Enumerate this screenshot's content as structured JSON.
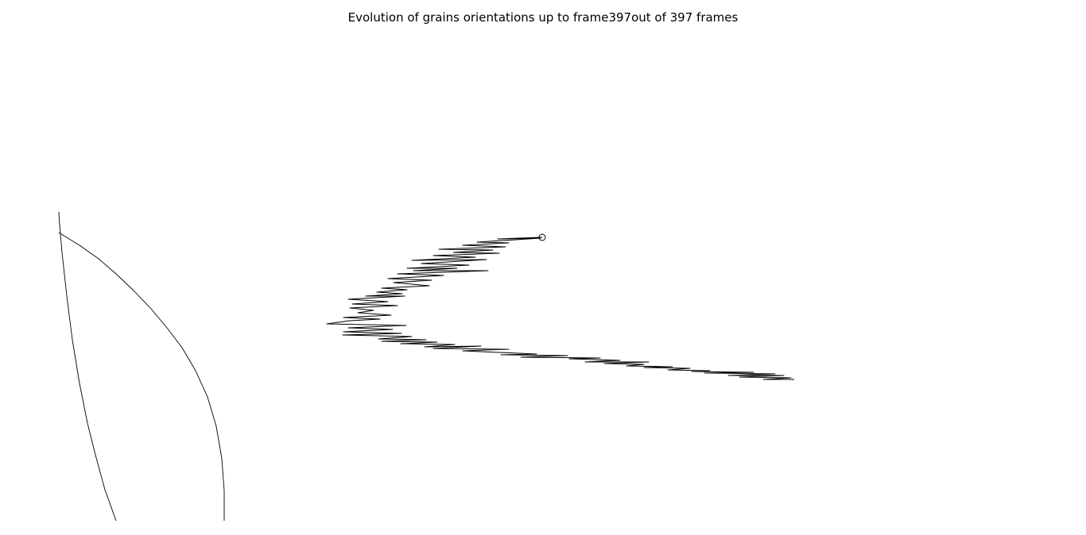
{
  "chart_data": {
    "type": "line",
    "title": "Evolution of grains orientations up to frame397out of 397 frames",
    "frame_current": 397,
    "frame_total": 397,
    "axes_visible": false,
    "grid": false,
    "legend": "none",
    "line_color": "#000000",
    "end_marker": "open-circle",
    "series": [
      {
        "values": [
          {
            "x": 682,
            "y": 299
          },
          {
            "x": 626,
            "y": 301
          },
          {
            "x": 680,
            "y": 300
          },
          {
            "x": 600,
            "y": 305
          },
          {
            "x": 640,
            "y": 306
          },
          {
            "x": 582,
            "y": 309
          },
          {
            "x": 636,
            "y": 311
          },
          {
            "x": 552,
            "y": 314
          },
          {
            "x": 620,
            "y": 315
          },
          {
            "x": 570,
            "y": 318
          },
          {
            "x": 628,
            "y": 319
          },
          {
            "x": 545,
            "y": 322
          },
          {
            "x": 598,
            "y": 324
          },
          {
            "x": 518,
            "y": 328
          },
          {
            "x": 612,
            "y": 327
          },
          {
            "x": 530,
            "y": 332
          },
          {
            "x": 590,
            "y": 334
          },
          {
            "x": 512,
            "y": 338
          },
          {
            "x": 575,
            "y": 338
          },
          {
            "x": 520,
            "y": 341
          },
          {
            "x": 614,
            "y": 341
          },
          {
            "x": 500,
            "y": 345
          },
          {
            "x": 558,
            "y": 347
          },
          {
            "x": 488,
            "y": 351
          },
          {
            "x": 543,
            "y": 353
          },
          {
            "x": 495,
            "y": 356
          },
          {
            "x": 540,
            "y": 360
          },
          {
            "x": 480,
            "y": 363
          },
          {
            "x": 512,
            "y": 365
          },
          {
            "x": 474,
            "y": 368
          },
          {
            "x": 506,
            "y": 370
          },
          {
            "x": 460,
            "y": 373
          },
          {
            "x": 509,
            "y": 373
          },
          {
            "x": 438,
            "y": 377
          },
          {
            "x": 488,
            "y": 380
          },
          {
            "x": 443,
            "y": 383
          },
          {
            "x": 500,
            "y": 385
          },
          {
            "x": 440,
            "y": 388
          },
          {
            "x": 470,
            "y": 391
          },
          {
            "x": 450,
            "y": 394
          },
          {
            "x": 492,
            "y": 397
          },
          {
            "x": 432,
            "y": 400
          },
          {
            "x": 478,
            "y": 402
          },
          {
            "x": 440,
            "y": 404
          },
          {
            "x": 411,
            "y": 408
          },
          {
            "x": 511,
            "y": 410
          },
          {
            "x": 438,
            "y": 413
          },
          {
            "x": 494,
            "y": 415
          },
          {
            "x": 432,
            "y": 418
          },
          {
            "x": 505,
            "y": 420
          },
          {
            "x": 431,
            "y": 422
          },
          {
            "x": 518,
            "y": 424
          },
          {
            "x": 476,
            "y": 427
          },
          {
            "x": 536,
            "y": 428
          },
          {
            "x": 480,
            "y": 430
          },
          {
            "x": 550,
            "y": 431
          },
          {
            "x": 504,
            "y": 433
          },
          {
            "x": 572,
            "y": 434
          },
          {
            "x": 534,
            "y": 437
          },
          {
            "x": 605,
            "y": 436
          },
          {
            "x": 545,
            "y": 439
          },
          {
            "x": 640,
            "y": 440
          },
          {
            "x": 582,
            "y": 442
          },
          {
            "x": 628,
            "y": 444
          },
          {
            "x": 675,
            "y": 446
          },
          {
            "x": 630,
            "y": 447
          },
          {
            "x": 714,
            "y": 448
          },
          {
            "x": 655,
            "y": 450
          },
          {
            "x": 755,
            "y": 451
          },
          {
            "x": 716,
            "y": 452
          },
          {
            "x": 780,
            "y": 454
          },
          {
            "x": 736,
            "y": 456
          },
          {
            "x": 816,
            "y": 456
          },
          {
            "x": 760,
            "y": 458
          },
          {
            "x": 810,
            "y": 459
          },
          {
            "x": 788,
            "y": 461
          },
          {
            "x": 846,
            "y": 462
          },
          {
            "x": 810,
            "y": 463
          },
          {
            "x": 868,
            "y": 464
          },
          {
            "x": 840,
            "y": 466
          },
          {
            "x": 893,
            "y": 467
          },
          {
            "x": 870,
            "y": 468
          },
          {
            "x": 948,
            "y": 469
          },
          {
            "x": 886,
            "y": 470
          },
          {
            "x": 975,
            "y": 471
          },
          {
            "x": 916,
            "y": 473
          },
          {
            "x": 986,
            "y": 473
          },
          {
            "x": 930,
            "y": 475
          },
          {
            "x": 995,
            "y": 476
          },
          {
            "x": 960,
            "y": 478
          },
          {
            "x": 999,
            "y": 478
          }
        ]
      }
    ],
    "boundary_arcs": [
      {
        "values": [
          {
            "x": 74,
            "y": 267
          },
          {
            "x": 75,
            "y": 283
          },
          {
            "x": 78,
            "y": 318
          },
          {
            "x": 84,
            "y": 373
          },
          {
            "x": 91,
            "y": 428
          },
          {
            "x": 100,
            "y": 483
          },
          {
            "x": 110,
            "y": 533
          },
          {
            "x": 120,
            "y": 573
          },
          {
            "x": 132,
            "y": 617
          },
          {
            "x": 146,
            "y": 656
          }
        ]
      },
      {
        "values": [
          {
            "x": 74,
            "y": 293
          },
          {
            "x": 100,
            "y": 309
          },
          {
            "x": 124,
            "y": 326
          },
          {
            "x": 146,
            "y": 345
          },
          {
            "x": 168,
            "y": 366
          },
          {
            "x": 190,
            "y": 389
          },
          {
            "x": 210,
            "y": 413
          },
          {
            "x": 229,
            "y": 438
          },
          {
            "x": 246,
            "y": 467
          },
          {
            "x": 261,
            "y": 500
          },
          {
            "x": 272,
            "y": 537
          },
          {
            "x": 279,
            "y": 578
          },
          {
            "x": 282,
            "y": 618
          },
          {
            "x": 282,
            "y": 656
          }
        ]
      }
    ]
  }
}
